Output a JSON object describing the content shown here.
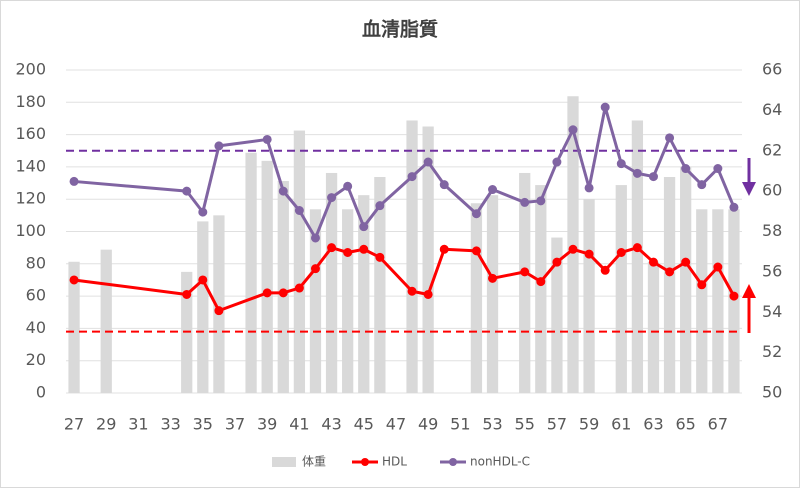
{
  "chart_data": {
    "type": "combo",
    "title": "血清脂質",
    "categories": [
      27,
      null,
      29,
      null,
      31,
      null,
      33,
      null,
      35,
      null,
      37,
      null,
      39,
      null,
      41,
      null,
      43,
      null,
      45,
      null,
      47,
      null,
      49,
      null,
      51,
      null,
      53,
      null,
      55,
      null,
      57,
      null,
      59,
      null,
      61,
      null,
      63,
      null,
      65,
      null,
      67,
      null
    ],
    "series": [
      {
        "name": "体重",
        "type": "bar",
        "axis": "y2",
        "color": "#d9d9d9",
        "values": [
          56.5,
          null,
          57.1,
          null,
          null,
          null,
          null,
          56.0,
          58.5,
          58.8,
          null,
          61.9,
          61.5,
          60.5,
          63.0,
          59.1,
          60.9,
          59.1,
          59.8,
          60.7,
          null,
          63.5,
          63.2,
          null,
          null,
          59.4,
          59.8,
          null,
          60.9,
          60.3,
          57.7,
          64.7,
          59.6,
          null,
          60.3,
          63.5,
          56.5,
          60.7,
          61.2,
          59.1,
          59.1,
          59.1
        ]
      },
      {
        "name": "HDL",
        "type": "line",
        "color": "#ff0000",
        "x": [
          27,
          34,
          35,
          36,
          39,
          40,
          41,
          42,
          43,
          44,
          45,
          46,
          48,
          49,
          50,
          52,
          53,
          55,
          56,
          57,
          58,
          59,
          60,
          61,
          62,
          63,
          64,
          65,
          66,
          67,
          68
        ],
        "values": [
          70,
          61,
          70,
          51,
          62,
          62,
          65,
          77,
          90,
          87,
          89,
          84,
          63,
          61,
          89,
          88,
          71,
          75,
          69,
          81,
          89,
          86,
          76,
          87,
          90,
          81,
          75,
          81,
          67,
          78,
          60
        ]
      },
      {
        "name": "nonHDL-C",
        "type": "line",
        "color": "#8064a2",
        "x": [
          27,
          34,
          35,
          36,
          39,
          40,
          41,
          42,
          43,
          44,
          45,
          46,
          48,
          49,
          50,
          52,
          53,
          55,
          56,
          57,
          58,
          59,
          60,
          61,
          62,
          63,
          64,
          65,
          66,
          67,
          68
        ],
        "values": [
          131,
          125,
          112,
          153,
          157,
          125,
          113,
          96,
          121,
          128,
          103,
          116,
          134,
          143,
          129,
          111,
          126,
          118,
          119,
          143,
          163,
          127,
          177,
          142,
          136,
          134,
          158,
          139,
          129,
          139,
          115
        ]
      }
    ],
    "reference_lines": [
      {
        "value": 150,
        "color": "#7030a0"
      },
      {
        "value": 38,
        "color": "#ff0000"
      }
    ],
    "ylim": [
      0,
      200
    ],
    "yticks": [
      0,
      20,
      40,
      60,
      80,
      100,
      120,
      140,
      160,
      180,
      200
    ],
    "y2lim": [
      50,
      66
    ],
    "y2ticks": [
      50,
      52,
      54,
      56,
      58,
      60,
      62,
      64,
      66
    ],
    "grid": true,
    "legend": "bottom"
  }
}
